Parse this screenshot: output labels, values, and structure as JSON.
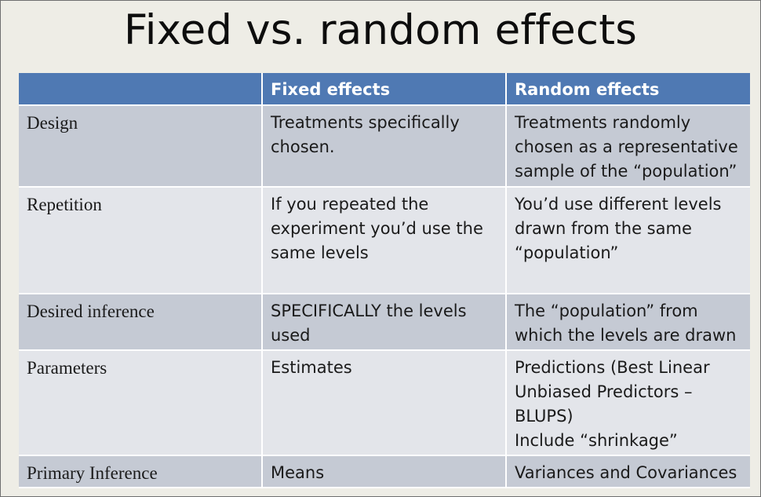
{
  "title": "Fixed vs. random effects",
  "table": {
    "headers": [
      "",
      "Fixed effects",
      "Random effects"
    ],
    "rows": [
      {
        "label": "Design",
        "fixed": [
          "Treatments specifically",
          "chosen."
        ],
        "random": [
          "Treatments randomly",
          "chosen as a representative",
          "sample of the “population”"
        ]
      },
      {
        "label": "Repetition",
        "fixed": [
          "If you repeated the",
          "experiment you’d use the",
          "same levels"
        ],
        "random": [
          "You’d use different levels",
          "drawn from the same",
          "“population”"
        ]
      },
      {
        "label": "Desired inference",
        "fixed": [
          "SPECIFICALLY the levels",
          "used"
        ],
        "random": [
          "The “population” from",
          "which the levels are drawn"
        ]
      },
      {
        "label": "Parameters",
        "fixed": [
          "Estimates"
        ],
        "random": [
          "Predictions (Best Linear",
          "Unbiased Predictors –",
          "BLUPS)",
          "Include “shrinkage”"
        ]
      },
      {
        "label": "Primary Inference",
        "fixed": [
          "Means"
        ],
        "random": [
          "Variances and Covariances"
        ]
      }
    ]
  }
}
